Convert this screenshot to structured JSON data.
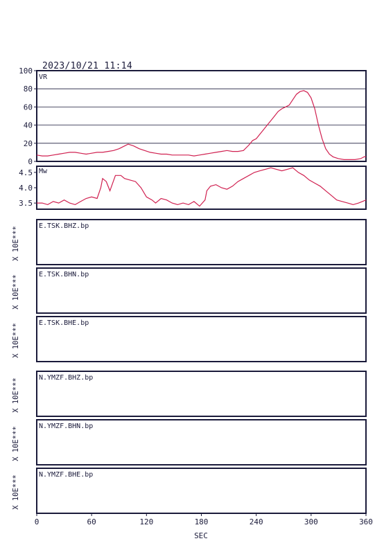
{
  "header": {
    "datetime": "2023/10/21  11:14"
  },
  "chart_data": [
    {
      "type": "line",
      "label": "VR",
      "ylim": [
        0,
        100
      ],
      "yticks": [
        "0",
        "20",
        "40",
        "60",
        "80",
        "100"
      ],
      "grid": true,
      "x": [
        0,
        6,
        12,
        18,
        24,
        30,
        36,
        42,
        48,
        54,
        60,
        66,
        72,
        78,
        84,
        90,
        96,
        100,
        106,
        112,
        118,
        124,
        130,
        136,
        142,
        148,
        154,
        160,
        166,
        172,
        178,
        184,
        190,
        196,
        202,
        208,
        214,
        220,
        226,
        232,
        236,
        240,
        244,
        248,
        252,
        256,
        260,
        264,
        268,
        272,
        276,
        280,
        284,
        288,
        292,
        296,
        300,
        304,
        308,
        312,
        316,
        320,
        324,
        330,
        336,
        342,
        348,
        354,
        358,
        360
      ],
      "y": [
        7,
        6,
        6,
        7,
        8,
        9,
        10,
        10,
        9,
        8,
        9,
        10,
        10,
        11,
        12,
        14,
        17,
        19,
        17,
        14,
        12,
        10,
        9,
        8,
        8,
        7,
        7,
        7,
        7,
        6,
        7,
        8,
        9,
        10,
        11,
        12,
        11,
        11,
        12,
        18,
        23,
        25,
        30,
        35,
        40,
        45,
        50,
        55,
        58,
        60,
        62,
        68,
        74,
        77,
        78,
        76,
        70,
        58,
        40,
        25,
        14,
        8,
        5,
        3,
        2,
        2,
        2,
        3,
        5,
        5
      ],
      "color": "#d02050"
    },
    {
      "type": "line",
      "label": "Mw",
      "ylim": [
        3.3,
        4.7
      ],
      "yticks": [
        "3.5",
        "4.0",
        "4.5"
      ],
      "grid": false,
      "x": [
        0,
        6,
        12,
        18,
        24,
        30,
        36,
        42,
        48,
        54,
        60,
        66,
        70,
        72,
        76,
        80,
        86,
        92,
        96,
        102,
        108,
        114,
        120,
        126,
        130,
        136,
        142,
        148,
        154,
        160,
        166,
        172,
        178,
        184,
        186,
        190,
        196,
        202,
        208,
        214,
        220,
        226,
        232,
        238,
        244,
        250,
        256,
        262,
        268,
        274,
        280,
        286,
        292,
        298,
        304,
        310,
        316,
        322,
        328,
        334,
        340,
        346,
        352,
        356,
        360
      ],
      "y": [
        3.5,
        3.5,
        3.45,
        3.55,
        3.5,
        3.6,
        3.5,
        3.45,
        3.55,
        3.65,
        3.7,
        3.65,
        4.0,
        4.3,
        4.2,
        3.9,
        4.4,
        4.4,
        4.3,
        4.25,
        4.2,
        4.0,
        3.7,
        3.6,
        3.5,
        3.65,
        3.6,
        3.5,
        3.45,
        3.5,
        3.45,
        3.55,
        3.4,
        3.6,
        3.9,
        4.05,
        4.1,
        4.0,
        3.95,
        4.05,
        4.2,
        4.3,
        4.4,
        4.5,
        4.55,
        4.6,
        4.65,
        4.6,
        4.55,
        4.6,
        4.65,
        4.5,
        4.4,
        4.25,
        4.15,
        4.05,
        3.9,
        3.75,
        3.6,
        3.55,
        3.5,
        3.45,
        3.5,
        3.55,
        3.6
      ],
      "color": "#d02050"
    }
  ],
  "traces": [
    {
      "name": "E.TSK.BHZ.bp",
      "scale_label": "X 10E***"
    },
    {
      "name": "E.TSK.BHN.bp",
      "scale_label": "X 10E***"
    },
    {
      "name": "E.TSK.BHE.bp",
      "scale_label": "X 10E***"
    },
    {
      "name": "N.YMZF.BHZ.bp",
      "scale_label": "X 10E***"
    },
    {
      "name": "N.YMZF.BHN.bp",
      "scale_label": "X 10E***"
    },
    {
      "name": "N.YMZF.BHE.bp",
      "scale_label": "X 10E***"
    }
  ],
  "x_axis": {
    "xlim": [
      0,
      360
    ],
    "ticks": [
      "0",
      "60",
      "120",
      "180",
      "240",
      "300",
      "360"
    ],
    "label": "SEC"
  }
}
